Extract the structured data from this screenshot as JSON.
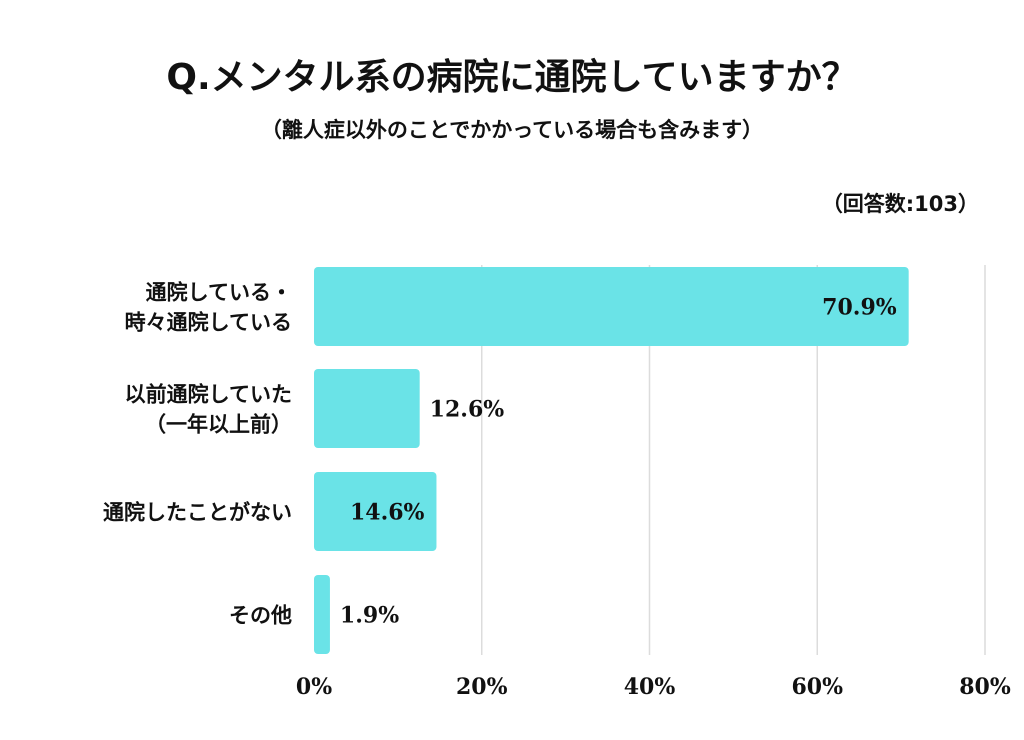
{
  "chart_data": {
    "type": "bar",
    "orientation": "horizontal",
    "title": "Q.メンタル系の病院に通院していますか？",
    "subtitle": "（離人症以外のことでかかっている場合も含みます）",
    "note": "（回答数:103）",
    "categories": [
      [
        "通院している・",
        "時々通院している"
      ],
      [
        "以前通院していた",
        "（一年以上前）"
      ],
      [
        "通院したことがない"
      ],
      [
        "その他"
      ]
    ],
    "values": [
      70.9,
      12.6,
      14.6,
      1.9
    ],
    "value_labels": [
      "70.9%",
      "12.6%",
      "14.6%",
      "1.9%"
    ],
    "xlim": [
      0,
      80
    ],
    "xticks": [
      0,
      20,
      40,
      60,
      80
    ],
    "xtick_labels": [
      "0%",
      "20%",
      "40%",
      "60%",
      "80%"
    ],
    "grid": true,
    "bar_color": "#6ae3e7",
    "grid_color": "#dcdcdc"
  }
}
